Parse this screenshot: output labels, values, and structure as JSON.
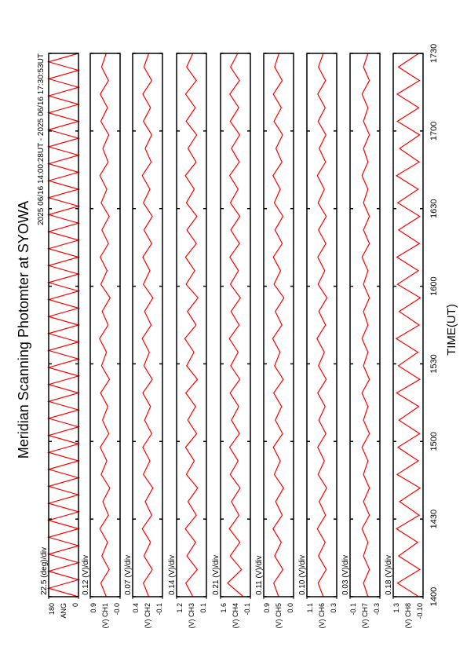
{
  "chart_data": {
    "type": "line",
    "title": "Meridian Scanning Photomter at SYOWA",
    "subtitle": "2025 06/16 14:00:28UT - 2025 06/16 17:30:53UT",
    "x_label": "TIME(UT)",
    "categories": [
      "1400",
      "1430",
      "1500",
      "1530",
      "1600",
      "1630",
      "1700",
      "1730"
    ],
    "panels": [
      {
        "label": "ANG",
        "scale": "22.5 (deg)/div",
        "color": "#ff0000",
        "ylim": [
          0,
          180
        ],
        "yticks": [
          0,
          180
        ],
        "values": [
          0,
          180,
          0,
          180,
          0,
          180,
          0,
          180,
          0,
          180,
          0,
          180,
          0,
          180,
          0,
          180,
          0,
          180,
          0,
          180,
          0,
          180,
          0,
          180,
          0,
          180,
          0,
          180,
          0,
          180,
          0,
          180,
          0,
          180,
          0,
          180,
          0,
          180,
          0,
          180,
          0,
          180,
          0,
          180,
          0,
          180,
          0,
          180,
          0,
          180,
          0,
          180,
          0,
          180,
          0,
          180,
          0,
          180,
          0,
          180,
          0,
          180,
          0,
          180,
          0
        ]
      },
      {
        "label": "(V) CH1",
        "scale": "0.12 (V)/div",
        "color": "#ff0000",
        "ylim": [
          0,
          0.9
        ],
        "yticks": [
          {
            "value": 0,
            "label": "-0.0"
          },
          0.9
        ],
        "values": [
          0.42,
          0.58,
          0.33,
          0.55,
          0.38,
          0.61,
          0.35,
          0.52,
          0.31,
          0.57,
          0.4,
          0.6,
          0.34,
          0.53,
          0.37,
          0.59,
          0.32,
          0.56,
          0.41,
          0.62,
          0.36,
          0.54,
          0.3,
          0.58,
          0.39,
          0.6,
          0.35,
          0.55,
          0.33,
          0.57,
          0.4,
          0.61,
          0.36,
          0.52,
          0.34,
          0.58,
          0.38,
          0.6,
          0.35,
          0.56,
          0.42
        ]
      },
      {
        "label": "(V) CH2",
        "scale": "0.07 (V)/div",
        "color": "#ff0000",
        "ylim": [
          -0.1,
          0.4
        ],
        "yticks": [
          -0.1,
          0.4
        ],
        "values": [
          0.13,
          0.22,
          0.07,
          0.21,
          0.1,
          0.24,
          0.08,
          0.19,
          0.06,
          0.22,
          0.11,
          0.23,
          0.08,
          0.2,
          0.1,
          0.23,
          0.07,
          0.21,
          0.12,
          0.24,
          0.09,
          0.2,
          0.06,
          0.22,
          0.11,
          0.23,
          0.08,
          0.21,
          0.07,
          0.22,
          0.11,
          0.24,
          0.09,
          0.19,
          0.08,
          0.22,
          0.1,
          0.23,
          0.08,
          0.21,
          0.13
        ]
      },
      {
        "label": "(V) CH3",
        "scale": "0.14 (V)/div",
        "color": "#ff0000",
        "ylim": [
          0.1,
          1.2
        ],
        "yticks": [
          0.1,
          1.2
        ],
        "values": [
          0.6,
          0.86,
          0.44,
          0.82,
          0.5,
          0.88,
          0.47,
          0.78,
          0.42,
          0.84,
          0.55,
          0.87,
          0.46,
          0.79,
          0.5,
          0.86,
          0.43,
          0.83,
          0.56,
          0.9,
          0.48,
          0.8,
          0.41,
          0.85,
          0.53,
          0.87,
          0.47,
          0.82,
          0.45,
          0.84,
          0.55,
          0.88,
          0.48,
          0.78,
          0.46,
          0.85,
          0.51,
          0.87,
          0.47,
          0.83,
          0.6
        ]
      },
      {
        "label": "(V) CH4",
        "scale": "0.21 (V)/div",
        "color": "#ff0000",
        "ylim": [
          -0.1,
          1.6
        ],
        "yticks": [
          -0.1,
          1.6
        ],
        "values": [
          0.3,
          1.2,
          0.4,
          1.05,
          0.5,
          1.1,
          0.55,
          0.98,
          0.48,
          1.05,
          0.6,
          1.08,
          0.52,
          0.98,
          0.56,
          1.06,
          0.5,
          1.02,
          0.6,
          1.1,
          0.54,
          1.0,
          0.47,
          1.04,
          0.58,
          1.07,
          0.52,
          1.02,
          0.5,
          1.04,
          0.6,
          1.08,
          0.53,
          0.98,
          0.51,
          1.05,
          0.56,
          1.07,
          0.52,
          1.03,
          0.62
        ]
      },
      {
        "label": "(V) CH5",
        "scale": "0.11 (V)/div",
        "color": "#ff0000",
        "ylim": [
          0,
          0.9
        ],
        "yticks": [
          {
            "value": 0,
            "label": "0.0"
          },
          0.9
        ],
        "values": [
          0.45,
          0.6,
          0.32,
          0.57,
          0.37,
          0.62,
          0.34,
          0.54,
          0.3,
          0.58,
          0.4,
          0.61,
          0.33,
          0.55,
          0.36,
          0.6,
          0.31,
          0.57,
          0.41,
          0.63,
          0.35,
          0.55,
          0.29,
          0.59,
          0.39,
          0.61,
          0.34,
          0.56,
          0.32,
          0.58,
          0.4,
          0.62,
          0.35,
          0.53,
          0.33,
          0.59,
          0.37,
          0.61,
          0.34,
          0.57,
          0.44
        ]
      },
      {
        "label": "(V) CH6",
        "scale": "0.10 (V)/div",
        "color": "#ff0000",
        "ylim": [
          0.3,
          1.1
        ],
        "yticks": [
          0.3,
          1.1
        ],
        "values": [
          0.66,
          0.8,
          0.58,
          0.79,
          0.61,
          0.82,
          0.6,
          0.77,
          0.57,
          0.8,
          0.63,
          0.81,
          0.59,
          0.78,
          0.61,
          0.81,
          0.58,
          0.79,
          0.63,
          0.83,
          0.6,
          0.78,
          0.56,
          0.8,
          0.62,
          0.81,
          0.59,
          0.79,
          0.58,
          0.8,
          0.63,
          0.82,
          0.6,
          0.77,
          0.59,
          0.8,
          0.61,
          0.81,
          0.6,
          0.79,
          0.66
        ]
      },
      {
        "label": "(V) CH7",
        "scale": "0.03 (V)/div",
        "color": "#ff0000",
        "ylim": [
          -0.3,
          -0.1
        ],
        "yticks": [
          -0.3,
          -0.1
        ],
        "values": [
          -0.22,
          -0.19,
          -0.23,
          -0.19,
          -0.22,
          -0.18,
          -0.23,
          -0.19,
          -0.23,
          -0.19,
          -0.22,
          -0.18,
          -0.23,
          -0.19,
          -0.22,
          -0.18,
          -0.23,
          -0.19,
          -0.22,
          -0.18,
          -0.22,
          -0.19,
          -0.23,
          -0.19,
          -0.22,
          -0.18,
          -0.23,
          -0.19,
          -0.23,
          -0.19,
          -0.22,
          -0.18,
          -0.22,
          -0.19,
          -0.23,
          -0.19,
          -0.22,
          -0.18,
          -0.23,
          -0.19,
          -0.22
        ]
      },
      {
        "label": "(V) CH8",
        "scale": "0.18 (V)/div",
        "color": "#ff0000",
        "ylim": [
          -0.1,
          1.3
        ],
        "yticks": [
          {
            "value": -0.1,
            "label": "-0.10"
          },
          1.3
        ],
        "values": [
          0.1,
          1.1,
          0.05,
          1.05,
          0.15,
          1.15,
          0.08,
          1.0,
          0.04,
          1.12,
          0.12,
          1.08,
          0.06,
          1.03,
          0.1,
          1.14,
          0.05,
          1.06,
          0.14,
          1.16,
          0.08,
          1.02,
          0.03,
          1.1,
          0.12,
          1.13,
          0.07,
          1.05,
          0.05,
          1.09,
          0.13,
          1.15,
          0.08,
          1.0,
          0.06,
          1.11,
          0.1,
          1.12,
          0.07,
          1.06,
          0.1
        ]
      }
    ]
  }
}
